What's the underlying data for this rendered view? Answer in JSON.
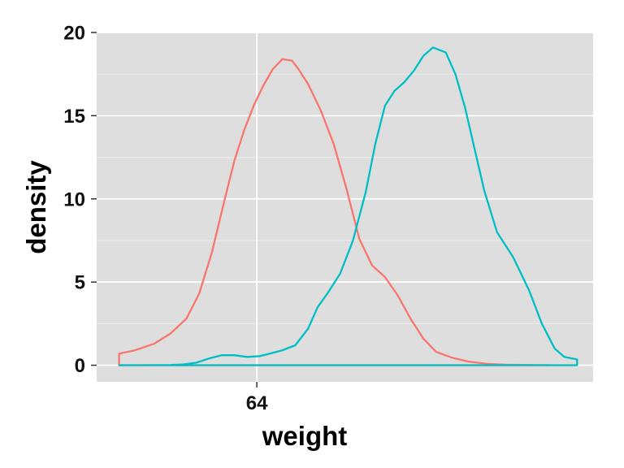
{
  "chart_data": {
    "type": "area",
    "xlabel": "weight",
    "ylabel": "density",
    "x_ticks": [
      64
    ],
    "y_ticks": [
      0,
      5,
      10,
      15,
      20
    ],
    "xlim": [
      59.0,
      74.5
    ],
    "ylim": [
      -1.0,
      20.0
    ],
    "grid": true,
    "legend": "none",
    "series": [
      {
        "color": "#F8766D",
        "x": [
          59.7,
          60.2,
          60.8,
          61.3,
          61.8,
          62.2,
          62.6,
          63.0,
          63.3,
          63.6,
          63.9,
          64.2,
          64.5,
          64.8,
          65.1,
          65.3,
          65.6,
          66.0,
          66.4,
          66.8,
          67.2,
          67.6,
          68.0,
          68.4,
          68.8,
          69.2,
          69.6,
          70.1,
          70.6,
          71.2,
          71.8,
          72.5,
          73.2
        ],
        "y": [
          0.7,
          0.9,
          1.3,
          1.9,
          2.8,
          4.3,
          6.8,
          10.0,
          12.3,
          14.1,
          15.6,
          16.8,
          17.8,
          18.4,
          18.3,
          17.8,
          16.9,
          15.3,
          13.3,
          10.6,
          7.6,
          6.0,
          5.3,
          4.2,
          2.8,
          1.6,
          0.8,
          0.45,
          0.22,
          0.08,
          0.03,
          0.01,
          0.0
        ]
      },
      {
        "color": "#00BFC4",
        "x": [
          59.7,
          60.5,
          61.3,
          61.7,
          62.1,
          62.5,
          62.9,
          63.3,
          63.7,
          64.1,
          64.4,
          64.8,
          65.2,
          65.6,
          65.9,
          66.2,
          66.6,
          67.0,
          67.4,
          67.7,
          68.0,
          68.3,
          68.6,
          68.9,
          69.2,
          69.5,
          69.9,
          70.2,
          70.5,
          70.8,
          71.1,
          71.5,
          72.0,
          72.5,
          72.9,
          73.3,
          73.6,
          74.0
        ],
        "y": [
          0.0,
          0.0,
          0.01,
          0.05,
          0.15,
          0.4,
          0.6,
          0.6,
          0.5,
          0.55,
          0.7,
          0.9,
          1.2,
          2.2,
          3.5,
          4.3,
          5.5,
          7.5,
          10.4,
          13.3,
          15.6,
          16.5,
          17.0,
          17.7,
          18.6,
          19.1,
          18.8,
          17.5,
          15.5,
          13.0,
          10.5,
          8.0,
          6.5,
          4.5,
          2.5,
          1.0,
          0.5,
          0.35
        ]
      }
    ]
  }
}
